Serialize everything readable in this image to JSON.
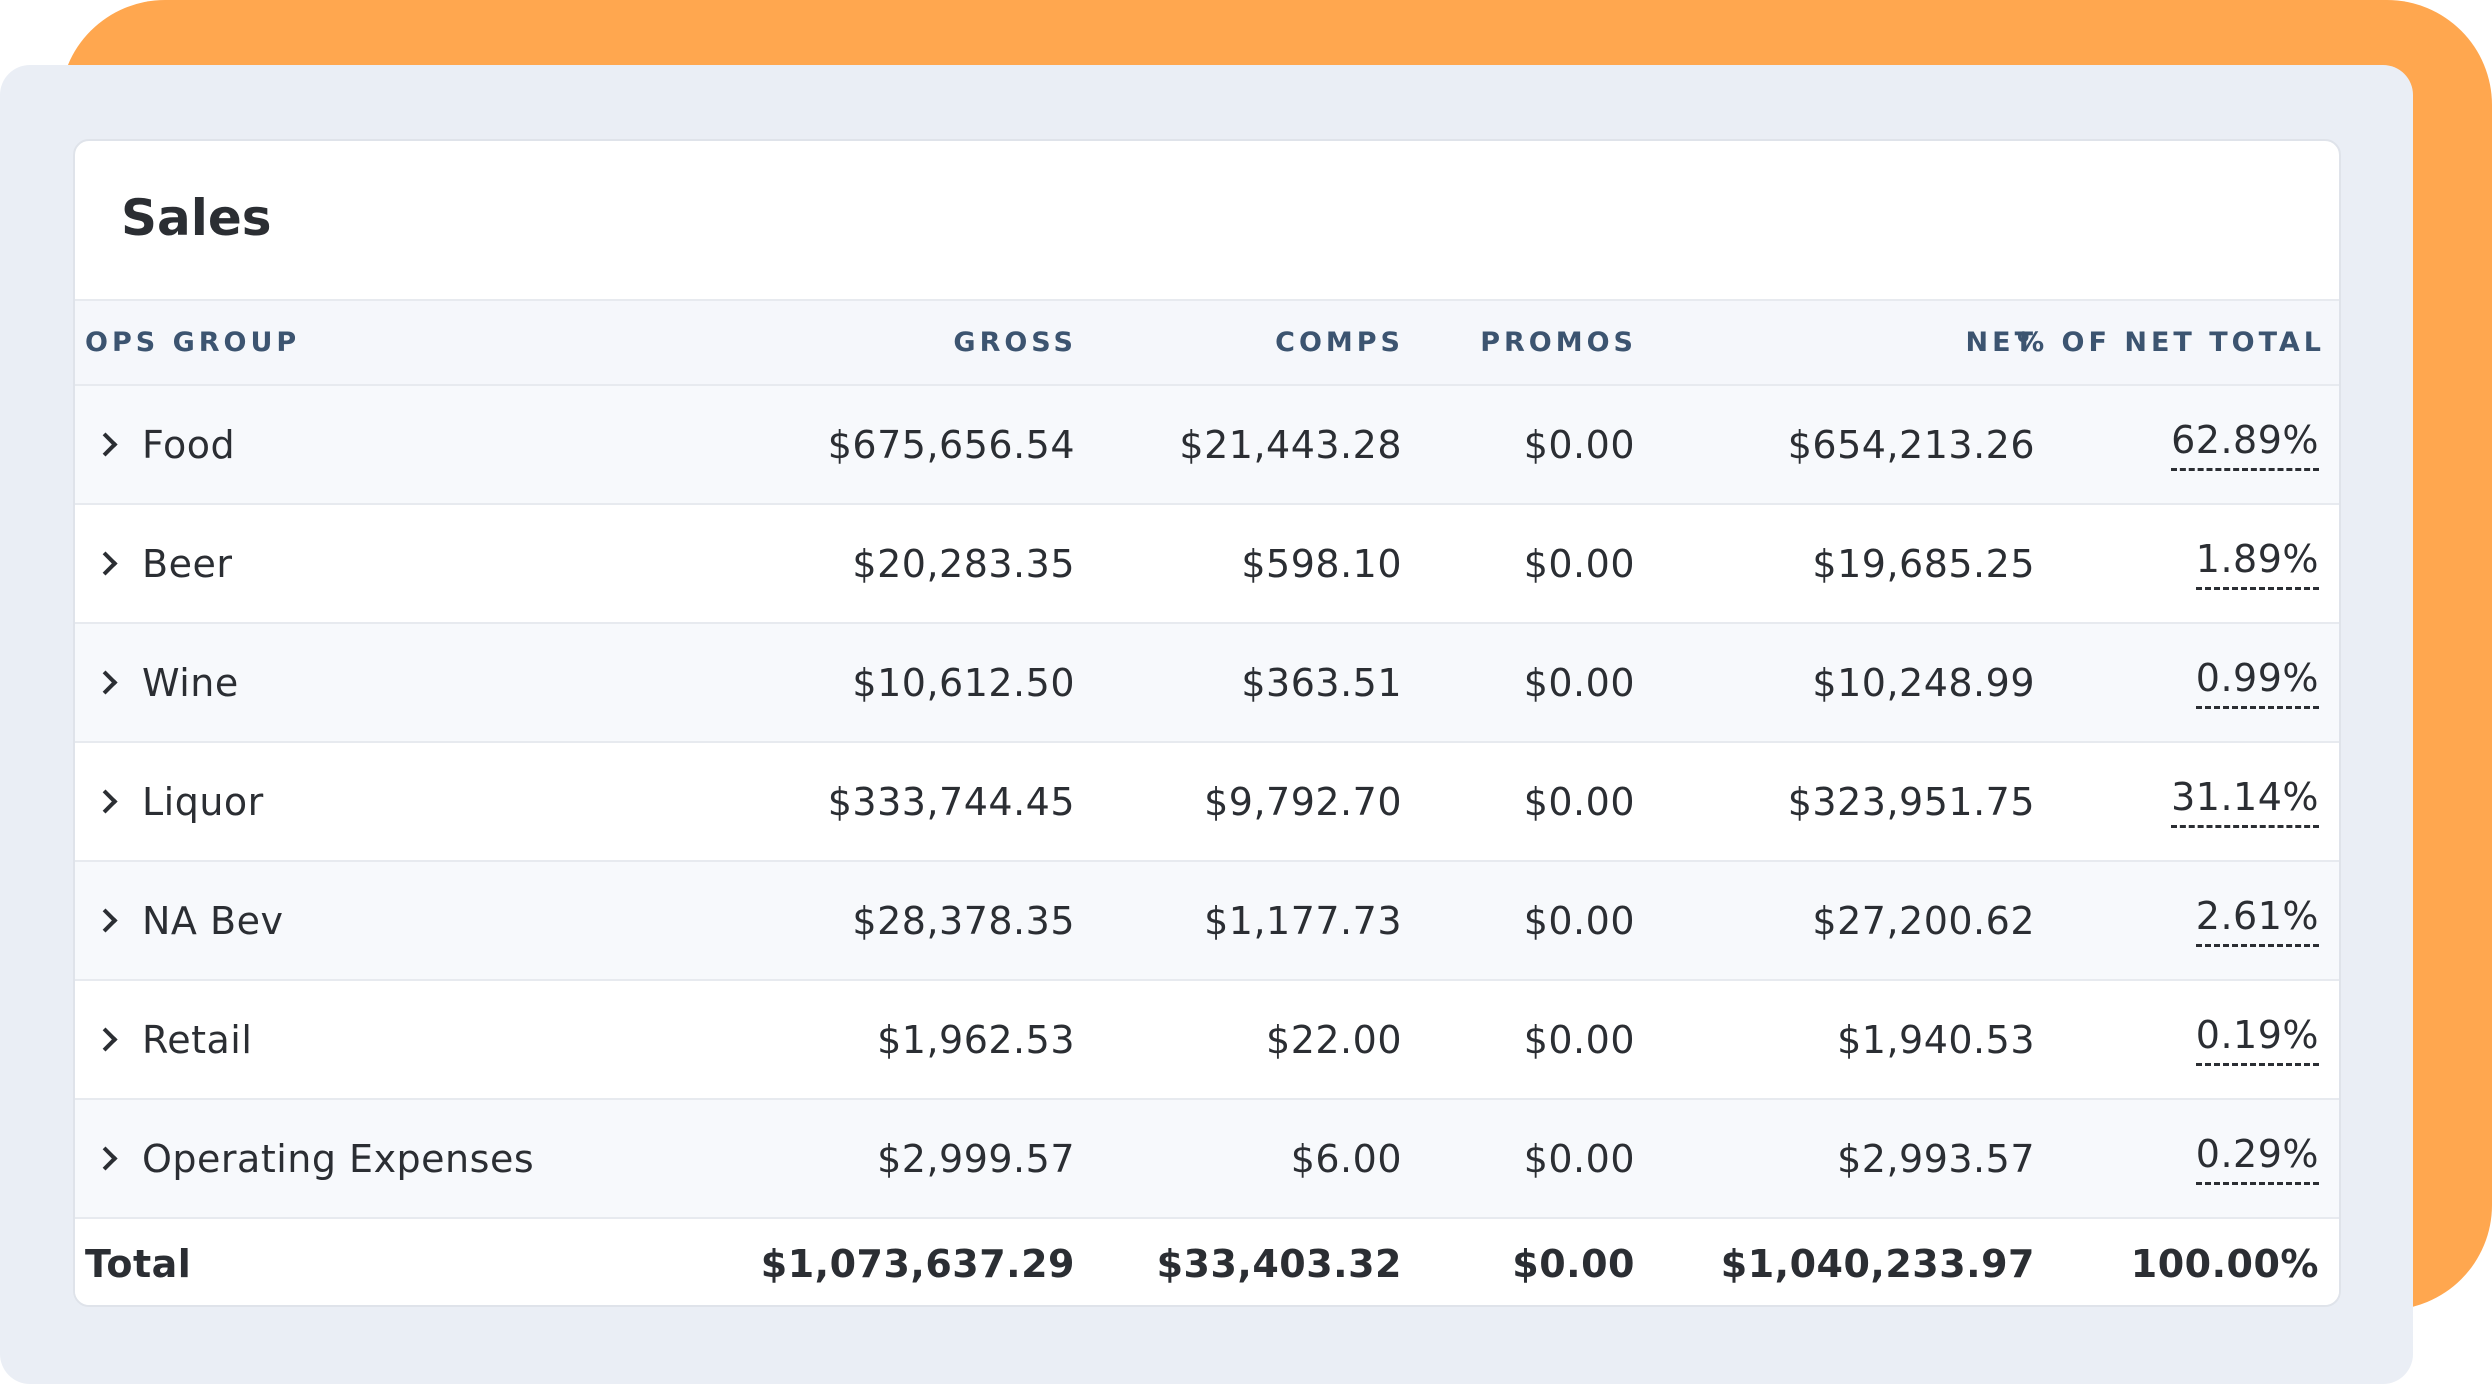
{
  "card": {
    "title": "Sales"
  },
  "table": {
    "columns": [
      "OPS GROUP",
      "GROSS",
      "COMPS",
      "PROMOS",
      "NET",
      "% OF NET TOTAL"
    ],
    "rows": [
      {
        "group": "Food",
        "gross": "$675,656.54",
        "comps": "$21,443.28",
        "promos": "$0.00",
        "net": "$654,213.26",
        "pct": "62.89%"
      },
      {
        "group": "Beer",
        "gross": "$20,283.35",
        "comps": "$598.10",
        "promos": "$0.00",
        "net": "$19,685.25",
        "pct": "1.89%"
      },
      {
        "group": "Wine",
        "gross": "$10,612.50",
        "comps": "$363.51",
        "promos": "$0.00",
        "net": "$10,248.99",
        "pct": "0.99%"
      },
      {
        "group": "Liquor",
        "gross": "$333,744.45",
        "comps": "$9,792.70",
        "promos": "$0.00",
        "net": "$323,951.75",
        "pct": "31.14%"
      },
      {
        "group": "NA Bev",
        "gross": "$28,378.35",
        "comps": "$1,177.73",
        "promos": "$0.00",
        "net": "$27,200.62",
        "pct": "2.61%"
      },
      {
        "group": "Retail",
        "gross": "$1,962.53",
        "comps": "$22.00",
        "promos": "$0.00",
        "net": "$1,940.53",
        "pct": "0.19%"
      },
      {
        "group": "Operating Expenses",
        "gross": "$2,999.57",
        "comps": "$6.00",
        "promos": "$0.00",
        "net": "$2,993.57",
        "pct": "0.29%"
      }
    ],
    "total": {
      "label": "Total",
      "gross": "$1,073,637.29",
      "comps": "$33,403.32",
      "promos": "$0.00",
      "net": "$1,040,233.97",
      "pct": "100.00%"
    }
  },
  "colors": {
    "accent_orange": "#ffa74f",
    "panel_gray": "#eaeef5",
    "header_text": "#3c5470",
    "body_text": "#2b2e33"
  },
  "icons": {
    "row_expand": "chevron-right-icon"
  }
}
